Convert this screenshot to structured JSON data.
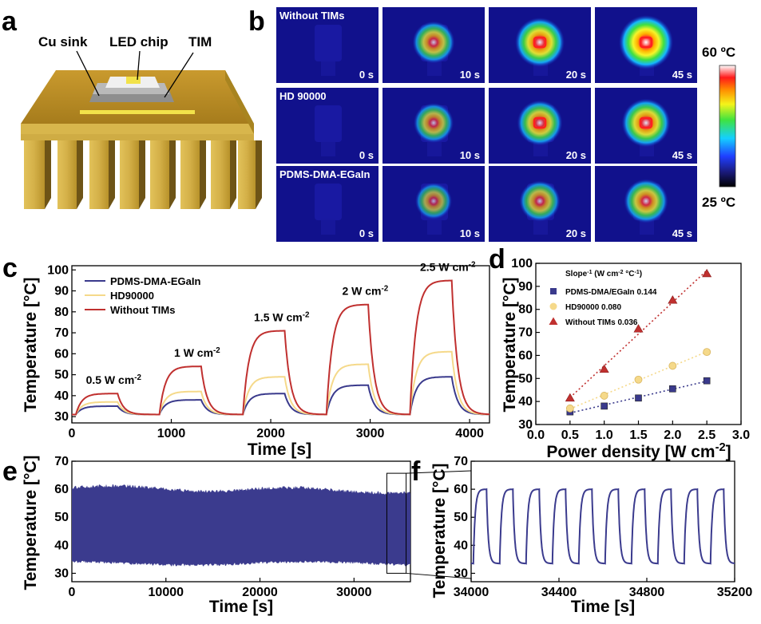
{
  "panel_labels": {
    "a": "a",
    "b": "b",
    "c": "c",
    "d": "d",
    "e": "e",
    "f": "f"
  },
  "schematic": {
    "labels": [
      "Cu sink",
      "LED chip",
      "TIM"
    ],
    "colors": {
      "sink": "#c9a83c",
      "sink_dark": "#8a6f1e",
      "chip": "#f2e24a"
    }
  },
  "thermal": {
    "rows": [
      "Without TIMs",
      "HD 90000",
      "PDMS-DMA-EGaIn"
    ],
    "times": [
      "0 s",
      "10 s",
      "20 s",
      "45 s"
    ],
    "intensity": [
      [
        0.0,
        0.62,
        0.85,
        1.0
      ],
      [
        0.0,
        0.55,
        0.72,
        0.82
      ],
      [
        0.0,
        0.45,
        0.58,
        0.68
      ]
    ],
    "colorbar": {
      "max_label": "60 ºC",
      "min_label": "25 ºC"
    }
  },
  "chart_data": [
    {
      "id": "c",
      "type": "line",
      "xlabel": "Time [s]",
      "ylabel": "Temperature [°C]",
      "xlim": [
        0,
        4200
      ],
      "ylim": [
        27,
        102
      ],
      "xticks": [
        0,
        1000,
        2000,
        3000,
        4000
      ],
      "yticks": [
        30,
        40,
        50,
        60,
        70,
        80,
        90,
        100
      ],
      "legend_position": "top-left",
      "cycle": {
        "period": 840,
        "on_duration": 420,
        "baseline": 31,
        "tau": 60
      },
      "power_steps": [
        "0.5 W cm-2",
        "1 W cm-2",
        "1.5 W cm-2",
        "2 W cm-2",
        "2.5 W cm-2"
      ],
      "series": [
        {
          "name": "PDMS-DMA-EGaIn",
          "color": "#3a3a8c",
          "peaks": [
            35,
            38,
            41,
            45,
            49
          ]
        },
        {
          "name": "HD90000",
          "color": "#f5d98a",
          "peaks": [
            37,
            42,
            49,
            55,
            61
          ]
        },
        {
          "name": "Without TIMs",
          "color": "#c0302f",
          "peaks": [
            41,
            54,
            71,
            83.5,
            95
          ]
        }
      ]
    },
    {
      "id": "d",
      "type": "scatter",
      "xlabel": "Power density [W cm-2]",
      "ylabel": "Temperature [°C]",
      "xlim": [
        0,
        3
      ],
      "ylim": [
        30,
        100
      ],
      "xticks": [
        0.0,
        0.5,
        1.0,
        1.5,
        2.0,
        2.5,
        3.0
      ],
      "yticks": [
        30,
        40,
        50,
        60,
        70,
        80,
        90,
        100
      ],
      "legend_title": "Slope-1 (W cm-2 °C-1)",
      "legend_position": "top-left",
      "x": [
        0.5,
        1.0,
        1.5,
        2.0,
        2.5
      ],
      "series": [
        {
          "name": "PDMS-DMA/EGaIn 0.144",
          "color": "#3a3a8c",
          "marker": "square",
          "values": [
            35.5,
            38,
            41.5,
            45.5,
            49
          ]
        },
        {
          "name": "HD90000 0.080",
          "color": "#f5d98a",
          "marker": "circle",
          "values": [
            37,
            42.5,
            49.5,
            55.5,
            61.5
          ]
        },
        {
          "name": "Without TIMs 0.036",
          "color": "#c0302f",
          "marker": "triangle",
          "values": [
            41.5,
            54,
            71.5,
            84,
            95.5
          ]
        }
      ]
    },
    {
      "id": "e",
      "type": "area",
      "xlabel": "Time [s]",
      "ylabel": "Temperature [°C]",
      "xlim": [
        0,
        36000
      ],
      "ylim": [
        27,
        70
      ],
      "xticks": [
        0,
        10000,
        20000,
        30000
      ],
      "yticks": [
        30,
        40,
        50,
        60,
        70
      ],
      "color": "#3b3b8e",
      "upper": 60,
      "lower": 34,
      "zoom_range": [
        34000,
        35200
      ]
    },
    {
      "id": "f",
      "type": "line",
      "xlabel": "Time [s]",
      "ylabel": "Temperature [°C]",
      "xlim": [
        34000,
        35200
      ],
      "ylim": [
        27,
        70
      ],
      "xticks": [
        34000,
        34400,
        34800,
        35200
      ],
      "yticks": [
        30,
        40,
        50,
        60,
        70
      ],
      "color": "#3b3b8e",
      "cycle": {
        "period": 120,
        "high": 60,
        "low": 33.5
      }
    }
  ]
}
